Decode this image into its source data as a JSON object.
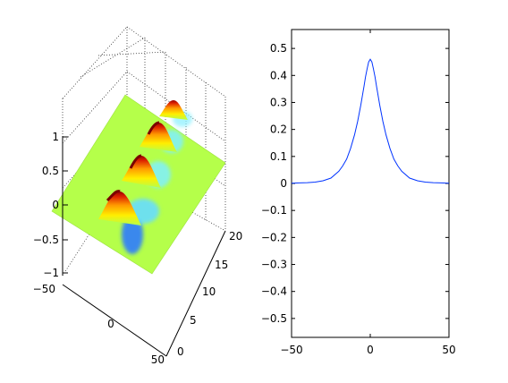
{
  "chart_data": [
    {
      "type": "surface",
      "x_ticks": [
        "−50",
        "0",
        "50"
      ],
      "y_ticks": [
        "0",
        "5",
        "10",
        "15",
        "20"
      ],
      "z_ticks": [
        "−1",
        "−0.5",
        "0",
        "0.5",
        "1"
      ],
      "xlim": [
        -50,
        50
      ],
      "ylim": [
        0,
        20
      ],
      "zlim": [
        -1,
        1
      ],
      "grid": true,
      "colormap": "jet",
      "surface_color_at_zero": "#b5ff4a",
      "peaks": [
        {
          "y": 6.5,
          "amplitude": 0.95
        },
        {
          "y": 11.0,
          "amplitude": 0.9
        },
        {
          "y": 15.5,
          "amplitude": 0.85
        },
        {
          "y": 19.5,
          "amplitude": 0.45
        }
      ]
    },
    {
      "type": "line",
      "x_ticks": [
        "−50",
        "0",
        "50"
      ],
      "y_ticks": [
        "−0.5",
        "−0.4",
        "−0.3",
        "−0.2",
        "−0.1",
        "0",
        "0.1",
        "0.2",
        "0.3",
        "0.4",
        "0.5"
      ],
      "xlim": [
        -50,
        50
      ],
      "ylim": [
        -0.57,
        0.57
      ],
      "grid": false,
      "series": [
        {
          "color": "#0033ff",
          "x": [
            -50,
            -45,
            -40,
            -35,
            -30,
            -25,
            -20,
            -17.5,
            -15,
            -12.5,
            -10,
            -8,
            -6,
            -5,
            -4,
            -3,
            -2,
            -1,
            0,
            1,
            2,
            3,
            4,
            5,
            6,
            8,
            10,
            12.5,
            15,
            17.5,
            20,
            25,
            30,
            35,
            40,
            45,
            50
          ],
          "y": [
            0.001,
            0.002,
            0.003,
            0.005,
            0.01,
            0.02,
            0.045,
            0.065,
            0.09,
            0.13,
            0.18,
            0.23,
            0.29,
            0.325,
            0.36,
            0.395,
            0.425,
            0.45,
            0.46,
            0.45,
            0.425,
            0.395,
            0.36,
            0.325,
            0.29,
            0.23,
            0.18,
            0.13,
            0.09,
            0.065,
            0.045,
            0.02,
            0.01,
            0.005,
            0.003,
            0.002,
            0.001
          ]
        }
      ]
    }
  ]
}
